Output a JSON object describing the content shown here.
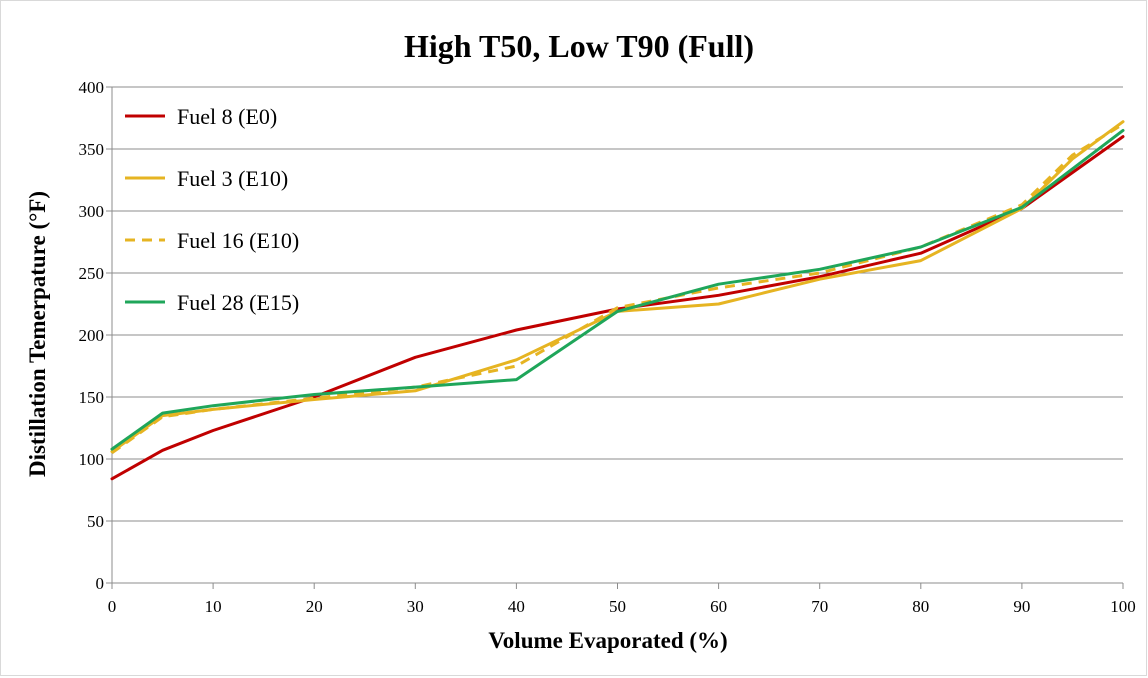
{
  "chart_data": {
    "type": "line",
    "title": "High T50, Low T90 (Full)",
    "xlabel": "Volume Evaporated  (%)",
    "ylabel": "Distillation Temerpature (°F)",
    "xlim": [
      0,
      100
    ],
    "ylim": [
      0,
      400
    ],
    "x_ticks": [
      0,
      10,
      20,
      30,
      40,
      50,
      60,
      70,
      80,
      90,
      100
    ],
    "y_ticks": [
      0,
      50,
      100,
      150,
      200,
      250,
      300,
      350,
      400
    ],
    "grid": "horizontal",
    "legend_position": "top-left",
    "series": [
      {
        "name": "Fuel 8 (E0)",
        "color": "#c00000",
        "dash": "solid",
        "x": [
          0,
          5,
          10,
          20,
          30,
          40,
          50,
          60,
          70,
          80,
          90,
          100
        ],
        "y": [
          84,
          107,
          123,
          150,
          182,
          204,
          221,
          232,
          247,
          266,
          302,
          360
        ]
      },
      {
        "name": "Fuel 3 (E10)",
        "color": "#e6b422",
        "dash": "solid",
        "x": [
          0,
          5,
          10,
          20,
          30,
          40,
          50,
          60,
          70,
          80,
          90,
          95,
          100
        ],
        "y": [
          106,
          135,
          140,
          148,
          155,
          180,
          219,
          225,
          245,
          260,
          302,
          342,
          372
        ]
      },
      {
        "name": "Fuel 16 (E10)",
        "color": "#e6b422",
        "dash": "dashed",
        "x": [
          0,
          5,
          10,
          20,
          30,
          40,
          50,
          60,
          70,
          80,
          90,
          95,
          100
        ],
        "y": [
          105,
          134,
          140,
          149,
          158,
          175,
          222,
          238,
          250,
          271,
          305,
          345,
          370
        ]
      },
      {
        "name": "Fuel 28 (E15)",
        "color": "#1fa65a",
        "dash": "solid",
        "x": [
          0,
          5,
          10,
          20,
          30,
          40,
          50,
          60,
          70,
          80,
          90,
          100
        ],
        "y": [
          108,
          137,
          143,
          152,
          158,
          164,
          219,
          241,
          253,
          271,
          303,
          365
        ]
      }
    ]
  }
}
